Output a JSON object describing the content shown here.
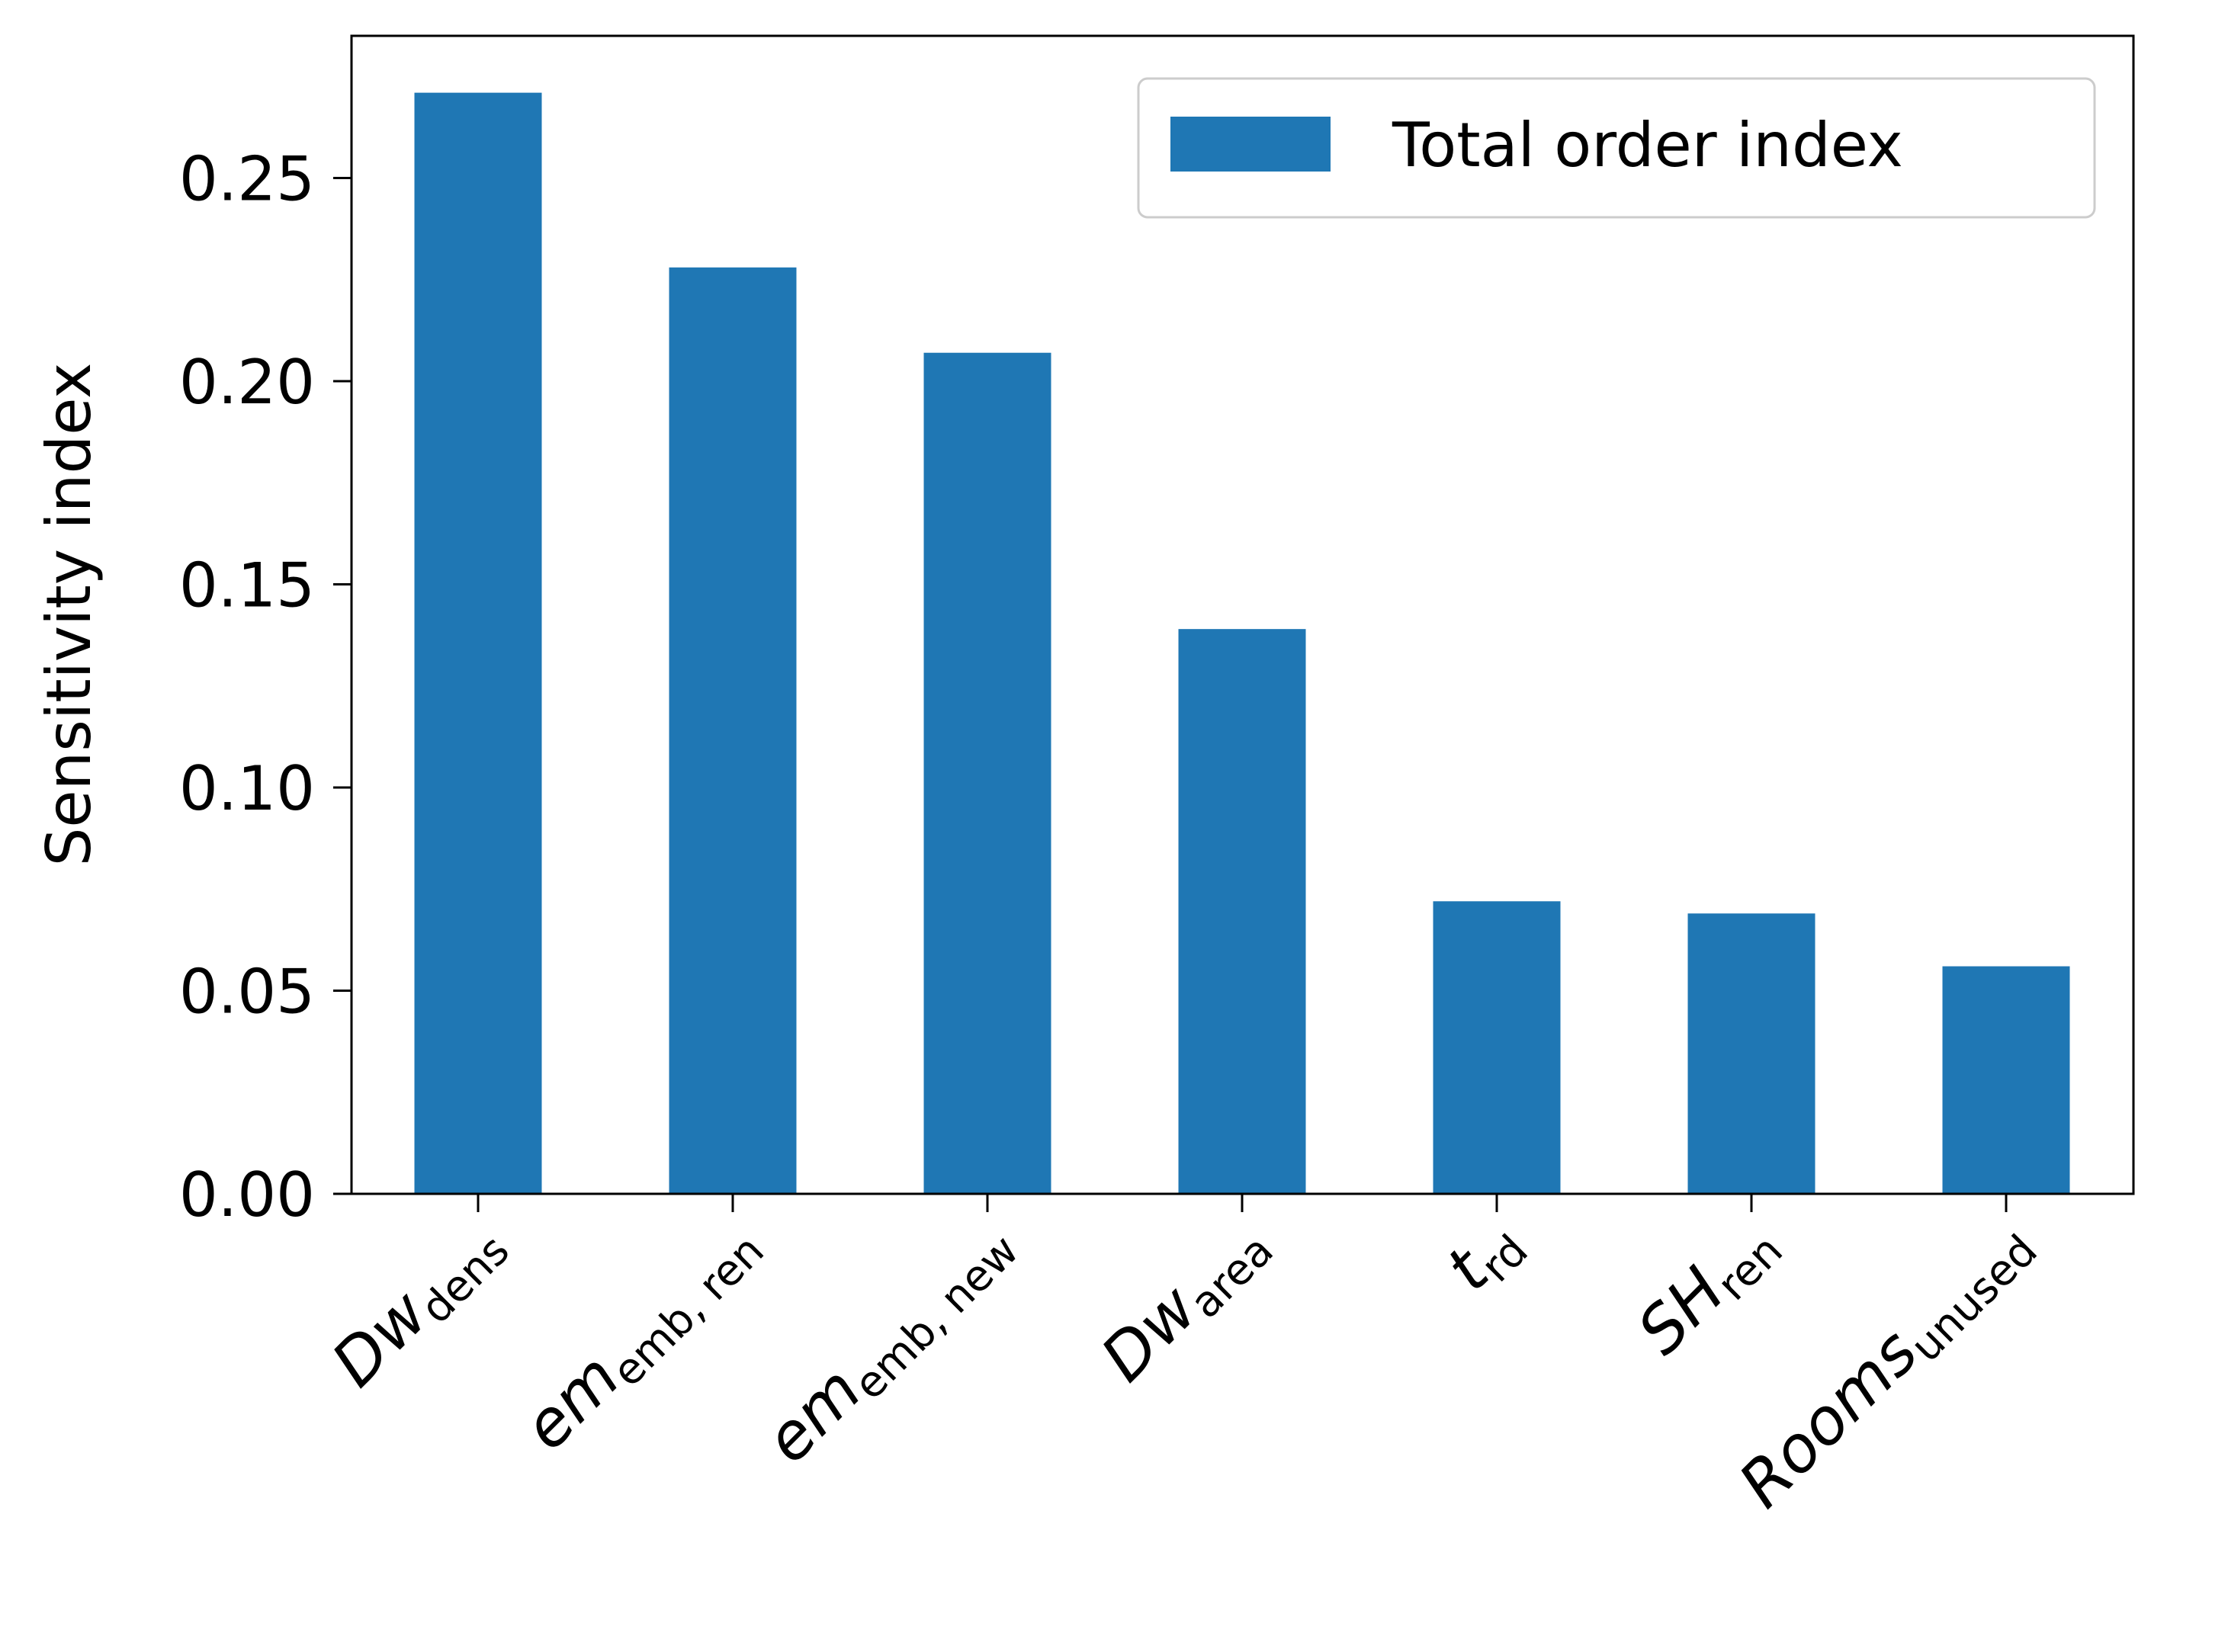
{
  "chart_data": {
    "type": "bar",
    "categories": [
      {
        "main": "Dw",
        "sub": "dens"
      },
      {
        "main": "em",
        "sub": "emb, ren"
      },
      {
        "main": "em",
        "sub": "emb, new"
      },
      {
        "main": "Dw",
        "sub": "area"
      },
      {
        "main": "t",
        "sub": "rd"
      },
      {
        "main": "SH",
        "sub": "ren"
      },
      {
        "main": "Rooms",
        "sub": "unused"
      }
    ],
    "series": [
      {
        "name": "Total order index",
        "values": [
          0.271,
          0.228,
          0.207,
          0.139,
          0.072,
          0.069,
          0.056
        ]
      }
    ],
    "ylabel": "Sensitivity index",
    "ylim": [
      0,
      0.285
    ],
    "yticks": [
      0.0,
      0.05,
      0.1,
      0.15,
      0.2,
      0.25
    ],
    "ytick_labels": [
      "0.00",
      "0.05",
      "0.10",
      "0.15",
      "0.20",
      "0.25"
    ],
    "grid": false,
    "legend_position": "top-right",
    "colors": {
      "bar": "#1f77b4"
    }
  }
}
